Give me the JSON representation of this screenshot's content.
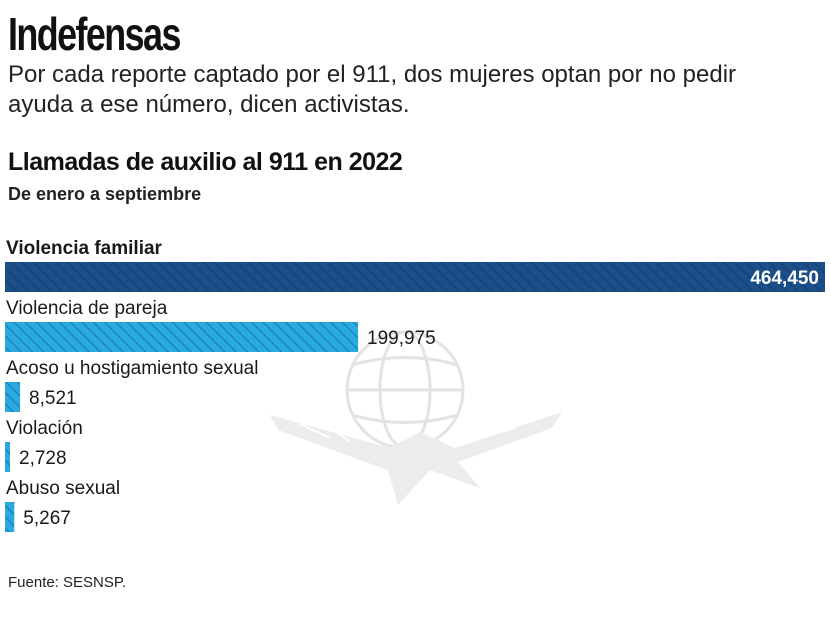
{
  "header": {
    "title": "Indefensas",
    "subtitle": "Por cada reporte captado por el 911, dos mujeres optan por no pedir ayuda a ese número, dicen activistas."
  },
  "chart_data": {
    "type": "bar",
    "orientation": "horizontal",
    "title": "Llamadas de auxilio al 911 en 2022",
    "subtitle": "De enero a septiembre",
    "categories": [
      "Violencia familiar",
      "Violencia de pareja",
      "Acoso u hostigamiento sexual",
      "Violación",
      "Abuso sexual"
    ],
    "values": [
      464450,
      199975,
      8521,
      2728,
      5267
    ],
    "value_labels": [
      "464,450",
      "199,975",
      "8,521",
      "2,728",
      "5,267"
    ],
    "xlim": [
      0,
      464450
    ],
    "grid": false,
    "colors": {
      "highlight": "#1b4f8a",
      "bar": "#29abe2",
      "hatch": "#1f86b6"
    }
  },
  "footer": {
    "source": "Fuente: SESNSP."
  }
}
